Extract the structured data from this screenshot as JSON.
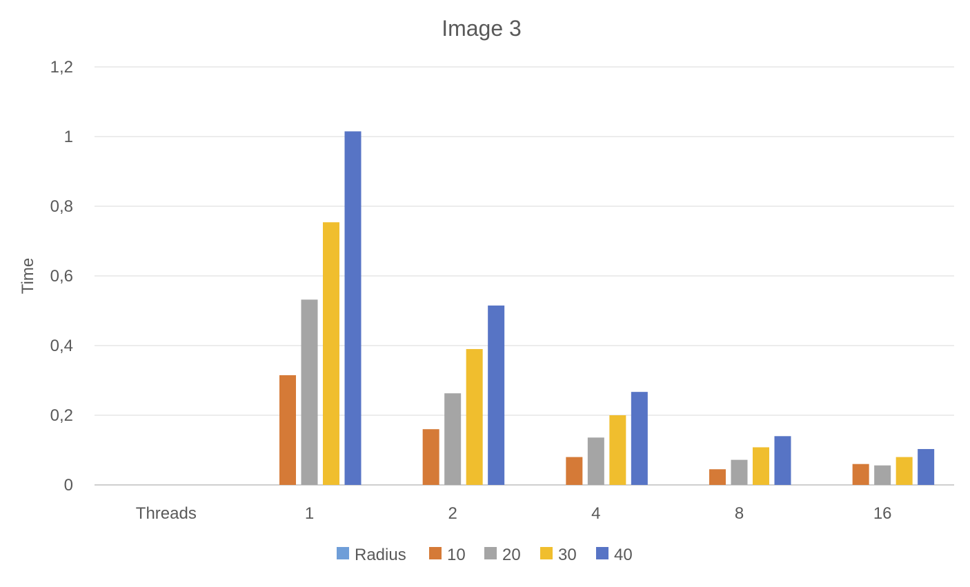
{
  "chart_data": {
    "type": "bar",
    "title": "Image 3",
    "xlabel": "",
    "ylabel": "Time",
    "categories": [
      "Threads",
      "1",
      "2",
      "4",
      "8",
      "16"
    ],
    "series": [
      {
        "name": "Radius",
        "color": "#6F9ED8",
        "values": [
          null,
          null,
          null,
          null,
          null,
          null
        ]
      },
      {
        "name": "10",
        "color": "#D57A37",
        "values": [
          null,
          0.315,
          0.16,
          0.08,
          0.045,
          0.06
        ]
      },
      {
        "name": "20",
        "color": "#A5A5A5",
        "values": [
          null,
          0.532,
          0.263,
          0.136,
          0.072,
          0.056
        ]
      },
      {
        "name": "30",
        "color": "#F0BE2E",
        "values": [
          null,
          0.754,
          0.39,
          0.2,
          0.108,
          0.08
        ]
      },
      {
        "name": "40",
        "color": "#5774C5",
        "values": [
          null,
          1.015,
          0.515,
          0.267,
          0.14,
          0.103
        ]
      }
    ],
    "ylim": [
      0,
      1.2
    ],
    "yticks": [
      "0",
      "0,2",
      "0,4",
      "0,6",
      "0,8",
      "1",
      "1,2"
    ],
    "grid": true,
    "legend_position": "bottom"
  }
}
